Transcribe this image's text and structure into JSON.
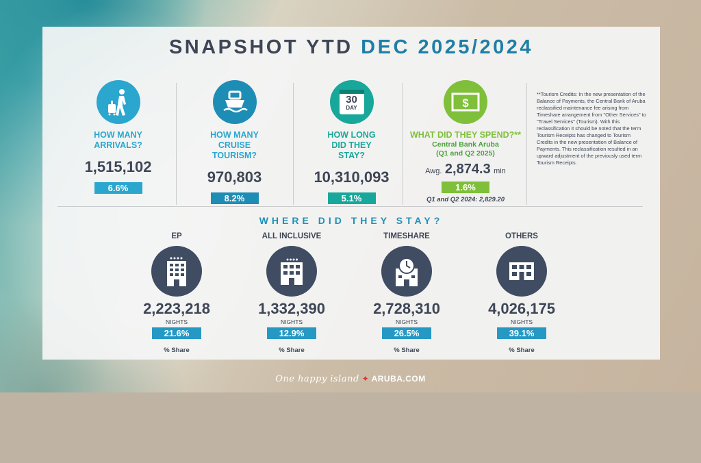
{
  "title": {
    "part1": "SNAPSHOT YTD",
    "part2": "DEC 2025/2024"
  },
  "colors": {
    "blue": "#2aa6cf",
    "navy": "#3f4c62",
    "green": "#7fbf3a",
    "teal": "#17a89b"
  },
  "stats": [
    {
      "icon": "traveler-icon",
      "question": "HOW MANY ARRIVALS?",
      "value": "1,515,102",
      "change": "6.6%"
    },
    {
      "icon": "cruise-ship-icon",
      "question": "HOW MANY CRUISE TOURISM?",
      "value": "970,803",
      "change": "8.2%"
    },
    {
      "icon": "calendar-icon",
      "calendar_number": "30",
      "calendar_label": "DAY",
      "question": "HOW LONG DID THEY STAY?",
      "value": "10,310,093",
      "change": "5.1%"
    },
    {
      "icon": "money-icon",
      "question": "WHAT DID THEY SPEND?**",
      "source": "Central Bank Aruba",
      "period": "(Q1 and Q2 2025)",
      "prefix": "Awg.",
      "value": "2,874.3",
      "unit": "min",
      "change": "1.6%",
      "prior": "Q1 and Q2 2024: 2,829.20"
    }
  ],
  "note": "**Tourism Credits: In the new presentation of the Balance of Payments, the Central Bank of Aruba reclassified maintenance fee arising from Timeshare arrangement from \"Other Services\" to \"Travel Services\" (Tourism). With this reclassification it should be noted that the term Tourism Receipts has changed to Tourism Credits in the new presentation of Balance of Payments. This reclassification resulted in an upward adjustment of the previously used term Tourism Receipts.",
  "where": {
    "title": "WHERE DID THEY STAY?",
    "nights_label": "NIGHTS",
    "share_label": "% Share",
    "items": [
      {
        "label": "EP",
        "value": "2,223,218",
        "share": "21.6%"
      },
      {
        "label": "ALL INCLUSIVE",
        "value": "1,332,390",
        "share": "12.9%"
      },
      {
        "label": "TIMESHARE",
        "value": "2,728,310",
        "share": "26.5%"
      },
      {
        "label": "OTHERS",
        "value": "4,026,175",
        "share": "39.1%"
      }
    ]
  },
  "footer": {
    "tagline": "One happy island",
    "star": "✦",
    "site": "ARUBA.COM"
  }
}
